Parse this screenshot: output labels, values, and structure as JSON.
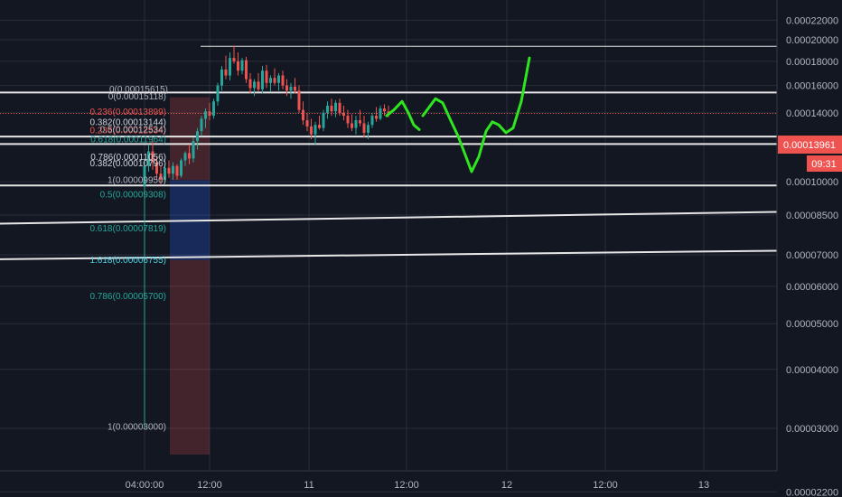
{
  "chart_data": {
    "type": "candlestick",
    "title": "",
    "y_scale": "log",
    "y_ticks": [
      "0.00022000",
      "0.00020000",
      "0.00018000",
      "0.00016000",
      "0.00014000",
      "0.00012000",
      "0.00010000",
      "0.00008500",
      "0.00007000",
      "0.00006000",
      "0.00005000",
      "0.00004000",
      "0.00003000",
      "0.00002200"
    ],
    "x_ticks": [
      "04:00:00",
      "12:00",
      "11",
      "12:00",
      "12",
      "12:00",
      "13"
    ],
    "last_price": "0.00013961",
    "countdown": "09:31",
    "fib_labels": [
      {
        "text": "0(0.00015615)",
        "color": "#aeb3bd",
        "price": 0.000157
      },
      {
        "text": "0(0.00015118)",
        "color": "#aeb3bd",
        "price": 0.0001515
      },
      {
        "text": "0.236(0.00013899)",
        "color": "#f05350",
        "price": 0.0001405
      },
      {
        "text": "0.382(0.00013144)",
        "color": "#cfd4dc",
        "price": 0.0001335
      },
      {
        "text": "0.236(0.00012534)",
        "color": "#f05350",
        "price": 0.0001285
      },
      {
        "text": "0.5(0.00012534)",
        "color": "#aeb3bd",
        "price": 0.0001288
      },
      {
        "text": "0.618(0.00011964)",
        "color": "#26a69a",
        "price": 0.0001228
      },
      {
        "text": "0.786(0.00011056)",
        "color": "#cfd4dc",
        "price": 0.0001126
      },
      {
        "text": "0.382(0.00010796)",
        "color": "#cfd4dc",
        "price": 0.0001093
      },
      {
        "text": "1(0.00009950)",
        "color": "#aeb3bd",
        "price": 0.0001008
      },
      {
        "text": "0.5(0.00009308)",
        "color": "#26a69a",
        "price": 9.38e-05
      },
      {
        "text": "0.618(0.00007819)",
        "color": "#26a69a",
        "price": 7.95e-05
      },
      {
        "text": "1.618(0.00006755)",
        "color": "#4dd0e1",
        "price": 6.82e-05
      },
      {
        "text": "0.786(0.00005700)",
        "color": "#26a69a",
        "price": 5.71e-05
      },
      {
        "text": "1(0.00003000)",
        "color": "#aeb3bd",
        "price": 3.02e-05
      }
    ],
    "horizontal_levels": [
      0.0001937,
      0.0001546,
      0.0001247,
      0.0001202,
      9.82e-05
    ],
    "trendlines": [
      {
        "from": 8.15e-05,
        "to": 8.63e-05
      },
      {
        "from": 6.85e-05,
        "to": 7.14e-05
      }
    ],
    "candles": [
      {
        "o": 9.8e-05,
        "h": 0.000112,
        "l": 3e-05,
        "c": 0.000108
      },
      {
        "o": 0.000108,
        "h": 0.00012,
        "l": 0.000105,
        "c": 0.000116
      },
      {
        "o": 0.000116,
        "h": 0.000122,
        "l": 0.000106,
        "c": 0.00011
      },
      {
        "o": 0.00011,
        "h": 0.000113,
        "l": 0.000101,
        "c": 0.000104
      },
      {
        "o": 0.000104,
        "h": 0.000108,
        "l": 9.85e-05,
        "c": 0.000101
      },
      {
        "o": 0.000101,
        "h": 0.000109,
        "l": 9.95e-05,
        "c": 0.000107
      },
      {
        "o": 0.000107,
        "h": 0.000111,
        "l": 0.000102,
        "c": 0.000104
      },
      {
        "o": 0.000104,
        "h": 0.00011,
        "l": 0.000101,
        "c": 0.000108
      },
      {
        "o": 0.000108,
        "h": 0.000109,
        "l": 0.000101,
        "c": 0.000103
      },
      {
        "o": 0.000103,
        "h": 0.000112,
        "l": 0.000102,
        "c": 0.000111
      },
      {
        "o": 0.000111,
        "h": 0.000116,
        "l": 0.000108,
        "c": 0.000115
      },
      {
        "o": 0.000115,
        "h": 0.00012,
        "l": 0.000109,
        "c": 0.000112
      },
      {
        "o": 0.000112,
        "h": 0.000124,
        "l": 0.00011,
        "c": 0.000122
      },
      {
        "o": 0.000122,
        "h": 0.00013,
        "l": 0.000117,
        "c": 0.000128
      },
      {
        "o": 0.000128,
        "h": 0.000138,
        "l": 0.000125,
        "c": 0.000136
      },
      {
        "o": 0.000136,
        "h": 0.000143,
        "l": 0.00013,
        "c": 0.000141
      },
      {
        "o": 0.000141,
        "h": 0.000147,
        "l": 0.000135,
        "c": 0.000138
      },
      {
        "o": 0.000138,
        "h": 0.00015,
        "l": 0.000136,
        "c": 0.000148
      },
      {
        "o": 0.000148,
        "h": 0.000162,
        "l": 0.000145,
        "c": 0.00016
      },
      {
        "o": 0.00016,
        "h": 0.000176,
        "l": 0.000156,
        "c": 0.000173
      },
      {
        "o": 0.000173,
        "h": 0.000185,
        "l": 0.000165,
        "c": 0.000168
      },
      {
        "o": 0.000168,
        "h": 0.000188,
        "l": 0.000164,
        "c": 0.000183
      },
      {
        "o": 0.000183,
        "h": 0.0001945,
        "l": 0.000178,
        "c": 0.00018
      },
      {
        "o": 0.00018,
        "h": 0.000188,
        "l": 0.000168,
        "c": 0.000172
      },
      {
        "o": 0.000172,
        "h": 0.000183,
        "l": 0.000169,
        "c": 0.000181
      },
      {
        "o": 0.000181,
        "h": 0.000184,
        "l": 0.000162,
        "c": 0.000165
      },
      {
        "o": 0.000165,
        "h": 0.00017,
        "l": 0.000154,
        "c": 0.000158
      },
      {
        "o": 0.000158,
        "h": 0.000165,
        "l": 0.000152,
        "c": 0.000163
      },
      {
        "o": 0.000163,
        "h": 0.00017,
        "l": 0.000155,
        "c": 0.000157
      },
      {
        "o": 0.000157,
        "h": 0.000176,
        "l": 0.000154,
        "c": 0.000172
      },
      {
        "o": 0.000172,
        "h": 0.000177,
        "l": 0.000158,
        "c": 0.000162
      },
      {
        "o": 0.000162,
        "h": 0.000168,
        "l": 0.000155,
        "c": 0.000166
      },
      {
        "o": 0.000166,
        "h": 0.000174,
        "l": 0.00016,
        "c": 0.000162
      },
      {
        "o": 0.000162,
        "h": 0.00017,
        "l": 0.000156,
        "c": 0.000168
      },
      {
        "o": 0.000168,
        "h": 0.000172,
        "l": 0.000157,
        "c": 0.00016
      },
      {
        "o": 0.00016,
        "h": 0.000165,
        "l": 0.000152,
        "c": 0.000156
      },
      {
        "o": 0.000156,
        "h": 0.000162,
        "l": 0.00015,
        "c": 0.000159
      },
      {
        "o": 0.000159,
        "h": 0.000166,
        "l": 0.000154,
        "c": 0.000156
      },
      {
        "o": 0.000156,
        "h": 0.00016,
        "l": 0.00014,
        "c": 0.000142
      },
      {
        "o": 0.000142,
        "h": 0.000148,
        "l": 0.000132,
        "c": 0.000135
      },
      {
        "o": 0.000135,
        "h": 0.00014,
        "l": 0.000128,
        "c": 0.000131
      },
      {
        "o": 0.000131,
        "h": 0.000136,
        "l": 0.000123,
        "c": 0.000126
      },
      {
        "o": 0.000126,
        "h": 0.000134,
        "l": 0.00012,
        "c": 0.000132
      },
      {
        "o": 0.000132,
        "h": 0.000138,
        "l": 0.000129,
        "c": 0.00013
      },
      {
        "o": 0.00013,
        "h": 0.000142,
        "l": 0.000128,
        "c": 0.00014
      },
      {
        "o": 0.00014,
        "h": 0.000148,
        "l": 0.000136,
        "c": 0.000145
      },
      {
        "o": 0.000145,
        "h": 0.00015,
        "l": 0.000138,
        "c": 0.000141
      },
      {
        "o": 0.000141,
        "h": 0.000149,
        "l": 0.000137,
        "c": 0.000147
      },
      {
        "o": 0.000147,
        "h": 0.00015,
        "l": 0.000138,
        "c": 0.00014
      },
      {
        "o": 0.00014,
        "h": 0.000145,
        "l": 0.000135,
        "c": 0.000138
      },
      {
        "o": 0.000138,
        "h": 0.000142,
        "l": 0.00013,
        "c": 0.000133
      },
      {
        "o": 0.000133,
        "h": 0.000139,
        "l": 0.000128,
        "c": 0.00013
      },
      {
        "o": 0.00013,
        "h": 0.000138,
        "l": 0.000126,
        "c": 0.000135
      },
      {
        "o": 0.000135,
        "h": 0.000142,
        "l": 0.000131,
        "c": 0.000133
      },
      {
        "o": 0.000133,
        "h": 0.000138,
        "l": 0.000124,
        "c": 0.000127
      },
      {
        "o": 0.000127,
        "h": 0.000134,
        "l": 0.000123,
        "c": 0.000132
      },
      {
        "o": 0.000132,
        "h": 0.00014,
        "l": 0.00013,
        "c": 0.000138
      },
      {
        "o": 0.000138,
        "h": 0.000144,
        "l": 0.000134,
        "c": 0.000136
      },
      {
        "o": 0.000136,
        "h": 0.000145,
        "l": 0.000135,
        "c": 0.000143
      },
      {
        "o": 0.000143,
        "h": 0.000146,
        "l": 0.000138,
        "c": 0.000141
      },
      {
        "o": 0.000141,
        "h": 0.000145,
        "l": 0.000137,
        "c": 0.0001396
      }
    ],
    "projection": [
      [
        0.000138,
        0.000142,
        0.000148,
        0.00014,
        0.000132,
        0.000129
      ],
      [
        0.000138,
        0.000143,
        0.00015,
        0.000147,
        0.000136,
        0.000125,
        0.000114,
        0.000105,
        0.000113,
        0.000128,
        0.000134,
        0.000132,
        0.000127,
        0.00013,
        0.000148,
        0.000183
      ]
    ]
  },
  "colors": {
    "background": "#131722",
    "grid": "#2a2e39",
    "up": "#26a69a",
    "down": "#ef5350",
    "projection": "#2ee51f",
    "level_line": "#e6e6e6",
    "price_label": "#ef5350",
    "box_risk": "#f05350",
    "box_reward": "#2962ff"
  }
}
